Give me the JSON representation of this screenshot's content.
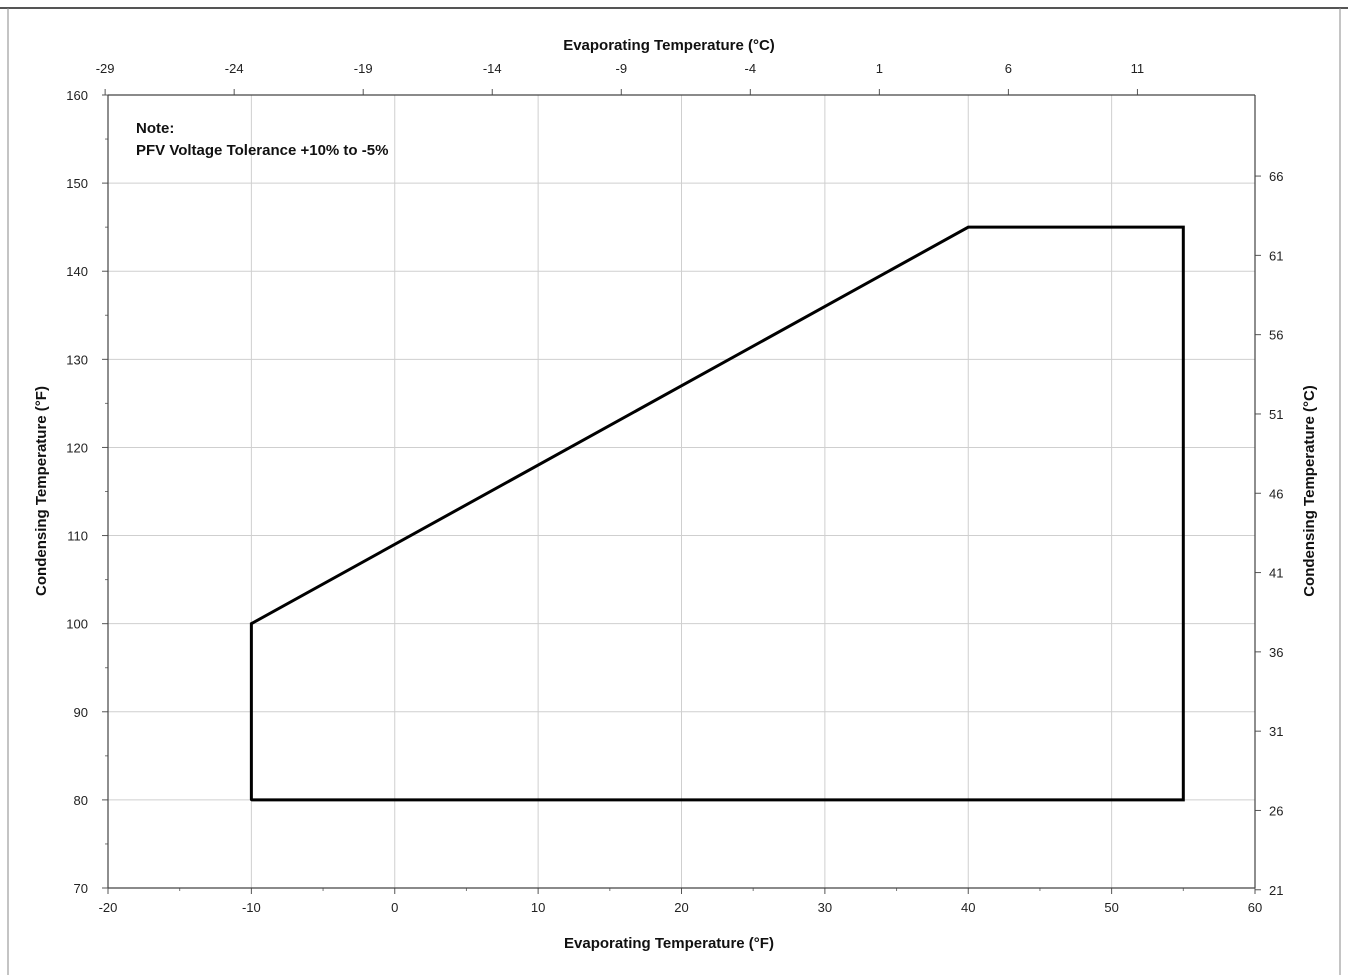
{
  "chart_data": {
    "type": "line",
    "title": "",
    "xlabel": "Evaporating Temperature (°F)",
    "ylabel": "Condensing Temperature (°F)",
    "x2label": "Evaporating Temperature (°C)",
    "y2label": "Condensing Temperature (°C)",
    "xlim": [
      -20,
      60
    ],
    "ylim": [
      70,
      160
    ],
    "grid": true,
    "x_ticks": [
      "-20",
      "-10",
      "0",
      "10",
      "20",
      "30",
      "40",
      "50",
      "60"
    ],
    "y_ticks": [
      "70",
      "80",
      "90",
      "100",
      "110",
      "120",
      "130",
      "140",
      "150",
      "160"
    ],
    "x2_ticks": [
      "-29",
      "-24",
      "-19",
      "-14",
      "-9",
      "-4",
      "1",
      "6",
      "11"
    ],
    "x2_tick_values_f": [
      -20.2,
      -11.2,
      -2.2,
      6.8,
      15.8,
      24.8,
      33.8,
      42.8,
      51.8
    ],
    "y2_ticks": [
      "21",
      "26",
      "31",
      "36",
      "41",
      "46",
      "51",
      "56",
      "61",
      "66"
    ],
    "y2_tick_values_f": [
      69.8,
      78.8,
      87.8,
      96.8,
      105.8,
      114.8,
      123.8,
      132.8,
      141.8,
      150.8
    ],
    "series": [
      {
        "x": [
          -10,
          -10,
          40,
          55,
          55,
          -10
        ],
        "y": [
          80,
          100,
          145,
          145,
          80,
          80
        ],
        "color": "#000000"
      }
    ],
    "annotations": [
      "Note:",
      "PFV Voltage Tolerance +10% to -5%"
    ]
  }
}
